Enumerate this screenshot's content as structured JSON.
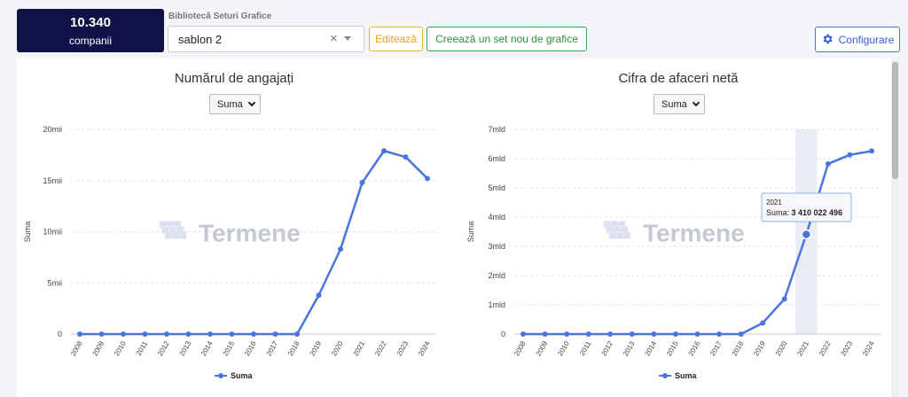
{
  "header": {
    "company_count": "10.340",
    "company_label": "companii",
    "library_label": "Bibliotecă Seturi Grafice",
    "selected_set": "sablon 2",
    "clear_glyph": "×",
    "edit_label": "Editează",
    "new_set_label": "Creează un set nou de grafice",
    "configure_label": "Configurare"
  },
  "colors": {
    "series": "#4a74e0",
    "dark": "#0f1246",
    "edit": "#f0b232",
    "new": "#3aa64a"
  },
  "watermark": "Termene",
  "charts": {
    "left": {
      "title": "Numărul de angajați",
      "aggregate": "Suma",
      "ylabel": "Suma",
      "legend": "Suma"
    },
    "right": {
      "title": "Cifra de afaceri netă",
      "aggregate": "Suma",
      "ylabel": "Suma",
      "legend": "Suma",
      "tooltip_year": "2021",
      "tooltip_label": "Suma: ",
      "tooltip_value": "3 410 022 496"
    }
  },
  "chart_data": [
    {
      "type": "line",
      "title": "Numărul de angajați",
      "ylabel": "Suma",
      "x": [
        "2008",
        "2009",
        "2010",
        "2011",
        "2012",
        "2013",
        "2014",
        "2015",
        "2016",
        "2017",
        "2018",
        "2019",
        "2020",
        "2021",
        "2022",
        "2023",
        "2024"
      ],
      "series": [
        {
          "name": "Suma",
          "values": [
            0,
            0,
            0,
            0,
            0,
            0,
            0,
            0,
            0,
            0,
            0,
            3800,
            8300,
            14800,
            17900,
            17300,
            15200
          ]
        }
      ],
      "ylim": [
        0,
        20000
      ],
      "yticks": [
        0,
        5000,
        10000,
        15000,
        20000
      ],
      "ytick_labels": [
        "0",
        "5mii",
        "10mii",
        "15mii",
        "20mii"
      ],
      "grid": true,
      "legend": "bottom"
    },
    {
      "type": "line",
      "title": "Cifra de afaceri netă",
      "ylabel": "Suma",
      "x": [
        "2008",
        "2009",
        "2010",
        "2011",
        "2012",
        "2013",
        "2014",
        "2015",
        "2016",
        "2017",
        "2018",
        "2019",
        "2020",
        "2021",
        "2022",
        "2023",
        "2024"
      ],
      "series": [
        {
          "name": "Suma",
          "values": [
            0,
            0,
            0,
            0,
            0,
            0,
            0,
            0,
            0,
            0,
            0,
            380000000,
            1200000000,
            3410022496,
            5820000000,
            6130000000,
            6260000000
          ]
        }
      ],
      "ylim": [
        0,
        7000000000
      ],
      "yticks": [
        0,
        1000000000,
        2000000000,
        3000000000,
        4000000000,
        5000000000,
        6000000000,
        7000000000
      ],
      "ytick_labels": [
        "0",
        "1mld",
        "2mld",
        "3mld",
        "4mld",
        "5mld",
        "6mld",
        "7mld"
      ],
      "grid": true,
      "legend": "bottom",
      "highlight": "2021"
    }
  ]
}
